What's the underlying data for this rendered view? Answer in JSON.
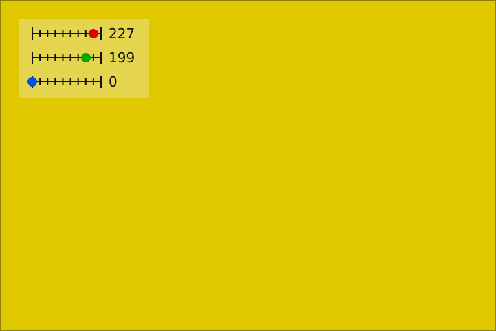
{
  "colors": {
    "background": "#e0c800",
    "panel": "#e5d54e",
    "track": "#111111"
  },
  "sliders": [
    {
      "name": "red",
      "value": "227",
      "level": 227,
      "max": 255,
      "color": "#e00000"
    },
    {
      "name": "green",
      "value": "199",
      "level": 199,
      "max": 255,
      "color": "#00aa00"
    },
    {
      "name": "blue",
      "value": "0",
      "level": 0,
      "max": 255,
      "color": "#0050e0"
    }
  ]
}
